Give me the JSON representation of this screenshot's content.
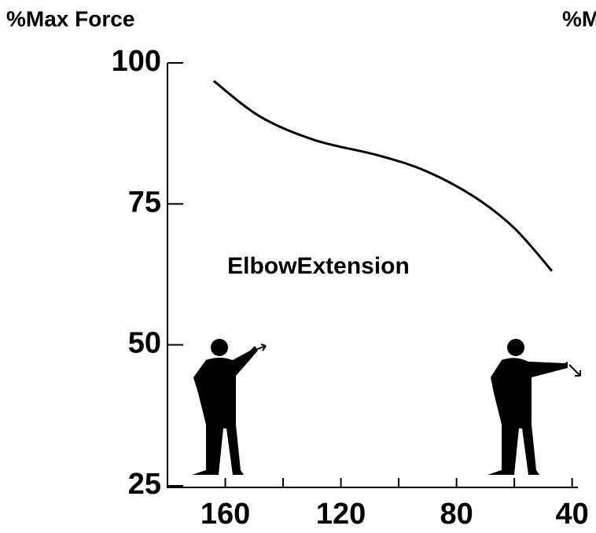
{
  "chart_data": {
    "type": "line",
    "y_label": "%Max Force",
    "second_chart_y_label": "%Max Force",
    "annotation": "ElbowExtension",
    "x": [
      164,
      148,
      129,
      107,
      90.5,
      74,
      60,
      47
    ],
    "values": [
      96.8,
      90.5,
      86.3,
      83.6,
      80.8,
      76.3,
      70.7,
      63.1
    ],
    "color": "#000000",
    "xlim": [
      180,
      38
    ],
    "xticks": [
      160,
      120,
      80,
      40
    ],
    "x_minor_ticks": [
      140,
      100,
      60
    ],
    "ylim": [
      25,
      100
    ],
    "yticks": [
      25,
      50,
      75,
      100
    ]
  }
}
